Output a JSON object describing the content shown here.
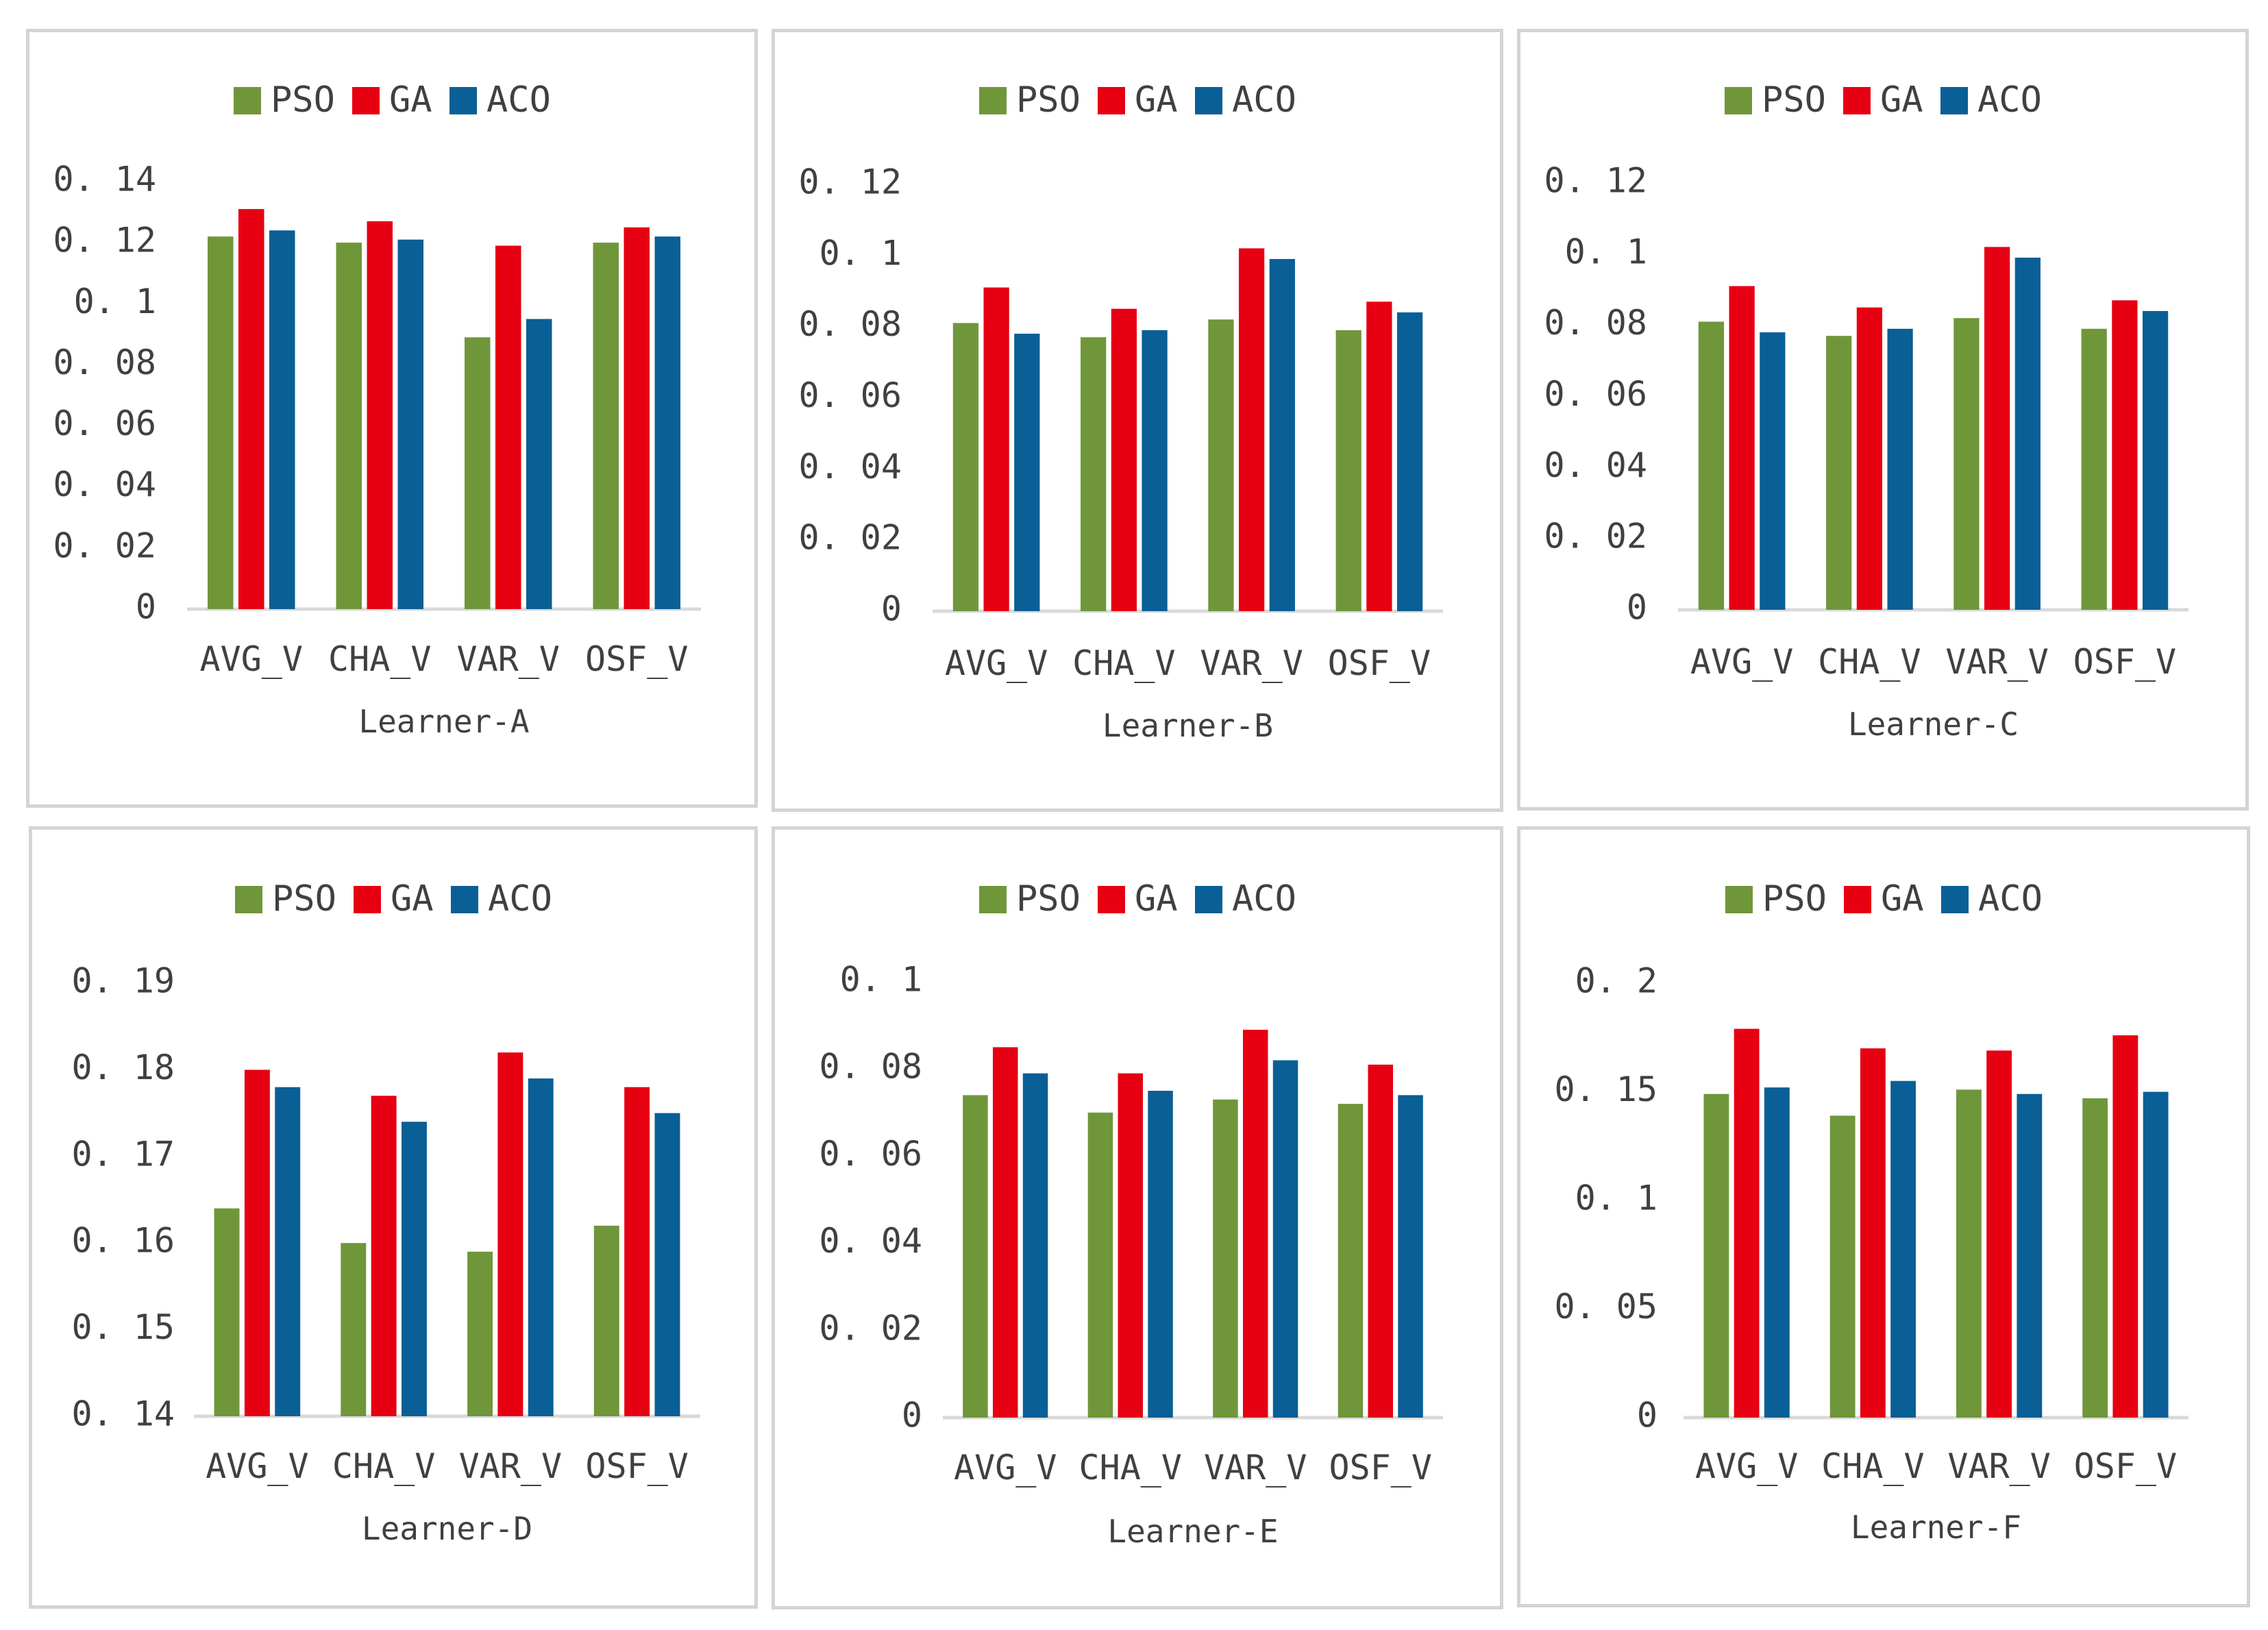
{
  "colors": {
    "PSO": "#70963a",
    "GA": "#e60012",
    "ACO": "#0a5f96",
    "axis": "#d9d9d9",
    "text": "#404040"
  },
  "chart_data": [
    {
      "type": "bar",
      "title": "Learner-A",
      "legend_position": "top-center",
      "categories": [
        "AVG_V",
        "CHA_V",
        "VAR_V",
        "OSF_V"
      ],
      "ylim": [
        0,
        0.14
      ],
      "yticks": [
        "0",
        "0. 02",
        "0. 04",
        "0. 06",
        "0. 08",
        "0. 1",
        "0. 12",
        "0. 14"
      ],
      "series": [
        {
          "name": "PSO",
          "values": [
            0.122,
            0.12,
            0.089,
            0.12
          ]
        },
        {
          "name": "GA",
          "values": [
            0.131,
            0.127,
            0.119,
            0.125
          ]
        },
        {
          "name": "ACO",
          "values": [
            0.124,
            0.121,
            0.095,
            0.122
          ]
        }
      ]
    },
    {
      "type": "bar",
      "title": "Learner-B",
      "legend_position": "top-center",
      "categories": [
        "AVG_V",
        "CHA_V",
        "VAR_V",
        "OSF_V"
      ],
      "ylim": [
        0,
        0.12
      ],
      "yticks": [
        "0",
        "0. 02",
        "0. 04",
        "0. 06",
        "0. 08",
        "0. 1",
        "0. 12"
      ],
      "series": [
        {
          "name": "PSO",
          "values": [
            0.081,
            0.077,
            0.082,
            0.079
          ]
        },
        {
          "name": "GA",
          "values": [
            0.091,
            0.085,
            0.102,
            0.087
          ]
        },
        {
          "name": "ACO",
          "values": [
            0.078,
            0.079,
            0.099,
            0.084
          ]
        }
      ]
    },
    {
      "type": "bar",
      "title": "Learner-C",
      "legend_position": "top-center",
      "categories": [
        "AVG_V",
        "CHA_V",
        "VAR_V",
        "OSF_V"
      ],
      "ylim": [
        0,
        0.12
      ],
      "yticks": [
        "0",
        "0. 02",
        "0. 04",
        "0. 06",
        "0. 08",
        "0. 1",
        "0. 12"
      ],
      "series": [
        {
          "name": "PSO",
          "values": [
            0.081,
            0.077,
            0.082,
            0.079
          ]
        },
        {
          "name": "GA",
          "values": [
            0.091,
            0.085,
            0.102,
            0.087
          ]
        },
        {
          "name": "ACO",
          "values": [
            0.078,
            0.079,
            0.099,
            0.084
          ]
        }
      ]
    },
    {
      "type": "bar",
      "title": "Learner-D",
      "legend_position": "top-center",
      "categories": [
        "AVG_V",
        "CHA_V",
        "VAR_V",
        "OSF_V"
      ],
      "ylim": [
        0.14,
        0.19
      ],
      "yticks": [
        "0. 14",
        "0. 15",
        "0. 16",
        "0. 17",
        "0. 18",
        "0. 19"
      ],
      "series": [
        {
          "name": "PSO",
          "values": [
            0.164,
            0.16,
            0.159,
            0.162
          ]
        },
        {
          "name": "GA",
          "values": [
            0.18,
            0.177,
            0.182,
            0.178
          ]
        },
        {
          "name": "ACO",
          "values": [
            0.178,
            0.174,
            0.179,
            0.175
          ]
        }
      ]
    },
    {
      "type": "bar",
      "title": "Learner-E",
      "legend_position": "top-center",
      "categories": [
        "AVG_V",
        "CHA_V",
        "VAR_V",
        "OSF_V"
      ],
      "ylim": [
        0,
        0.1
      ],
      "yticks": [
        "0",
        "0. 02",
        "0. 04",
        "0. 06",
        "0. 08",
        "0. 1"
      ],
      "series": [
        {
          "name": "PSO",
          "values": [
            0.074,
            0.07,
            0.073,
            0.072
          ]
        },
        {
          "name": "GA",
          "values": [
            0.085,
            0.079,
            0.089,
            0.081
          ]
        },
        {
          "name": "ACO",
          "values": [
            0.079,
            0.075,
            0.082,
            0.074
          ]
        }
      ]
    },
    {
      "type": "bar",
      "title": "Learner-F",
      "legend_position": "top-center",
      "categories": [
        "AVG_V",
        "CHA_V",
        "VAR_V",
        "OSF_V"
      ],
      "ylim": [
        0,
        0.2
      ],
      "yticks": [
        "0",
        "0. 05",
        "0. 1",
        "0. 15",
        "0. 2"
      ],
      "series": [
        {
          "name": "PSO",
          "values": [
            0.149,
            0.139,
            0.151,
            0.147
          ]
        },
        {
          "name": "GA",
          "values": [
            0.179,
            0.17,
            0.169,
            0.176
          ]
        },
        {
          "name": "ACO",
          "values": [
            0.152,
            0.155,
            0.149,
            0.15
          ]
        }
      ]
    }
  ]
}
